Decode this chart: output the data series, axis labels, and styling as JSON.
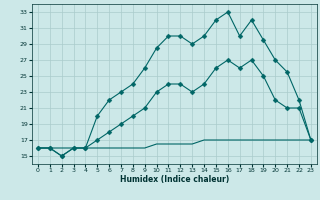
{
  "title": "",
  "xlabel": "Humidex (Indice chaleur)",
  "bg_color": "#cce8e8",
  "grid_color": "#aacccc",
  "line_color": "#006666",
  "xlim": [
    -0.5,
    23.5
  ],
  "ylim": [
    14,
    34
  ],
  "yticks": [
    15,
    17,
    19,
    21,
    23,
    25,
    27,
    29,
    31,
    33
  ],
  "xticks": [
    0,
    1,
    2,
    3,
    4,
    5,
    6,
    7,
    8,
    9,
    10,
    11,
    12,
    13,
    14,
    15,
    16,
    17,
    18,
    19,
    20,
    21,
    22,
    23
  ],
  "line1_x": [
    0,
    1,
    2,
    3,
    4,
    5,
    6,
    7,
    8,
    9,
    10,
    11,
    12,
    13,
    14,
    15,
    16,
    17,
    18,
    19,
    20,
    21,
    22,
    23
  ],
  "line1_y": [
    16,
    16,
    15,
    16,
    16,
    20,
    22,
    23,
    24,
    26,
    28.5,
    30,
    30,
    29,
    30,
    32,
    33,
    30,
    32,
    29.5,
    27,
    25.5,
    22,
    17
  ],
  "line2_x": [
    0,
    1,
    2,
    3,
    4,
    5,
    6,
    7,
    8,
    9,
    10,
    11,
    12,
    13,
    14,
    15,
    16,
    17,
    18,
    19,
    20,
    21,
    22,
    23
  ],
  "line2_y": [
    16,
    16,
    15,
    16,
    16,
    17,
    18,
    19,
    20,
    21,
    23,
    24,
    24,
    23,
    24,
    26,
    27,
    26,
    27,
    25,
    22,
    21,
    21,
    17
  ],
  "line3_x": [
    0,
    1,
    2,
    3,
    4,
    5,
    6,
    7,
    8,
    9,
    10,
    11,
    12,
    13,
    14,
    15,
    16,
    17,
    18,
    19,
    20,
    21,
    22,
    23
  ],
  "line3_y": [
    16,
    16,
    16,
    16,
    16,
    16,
    16,
    16,
    16,
    16,
    16.5,
    16.5,
    16.5,
    16.5,
    17,
    17,
    17,
    17,
    17,
    17,
    17,
    17,
    17,
    17
  ],
  "marker_size": 2.5,
  "line_width": 0.8
}
